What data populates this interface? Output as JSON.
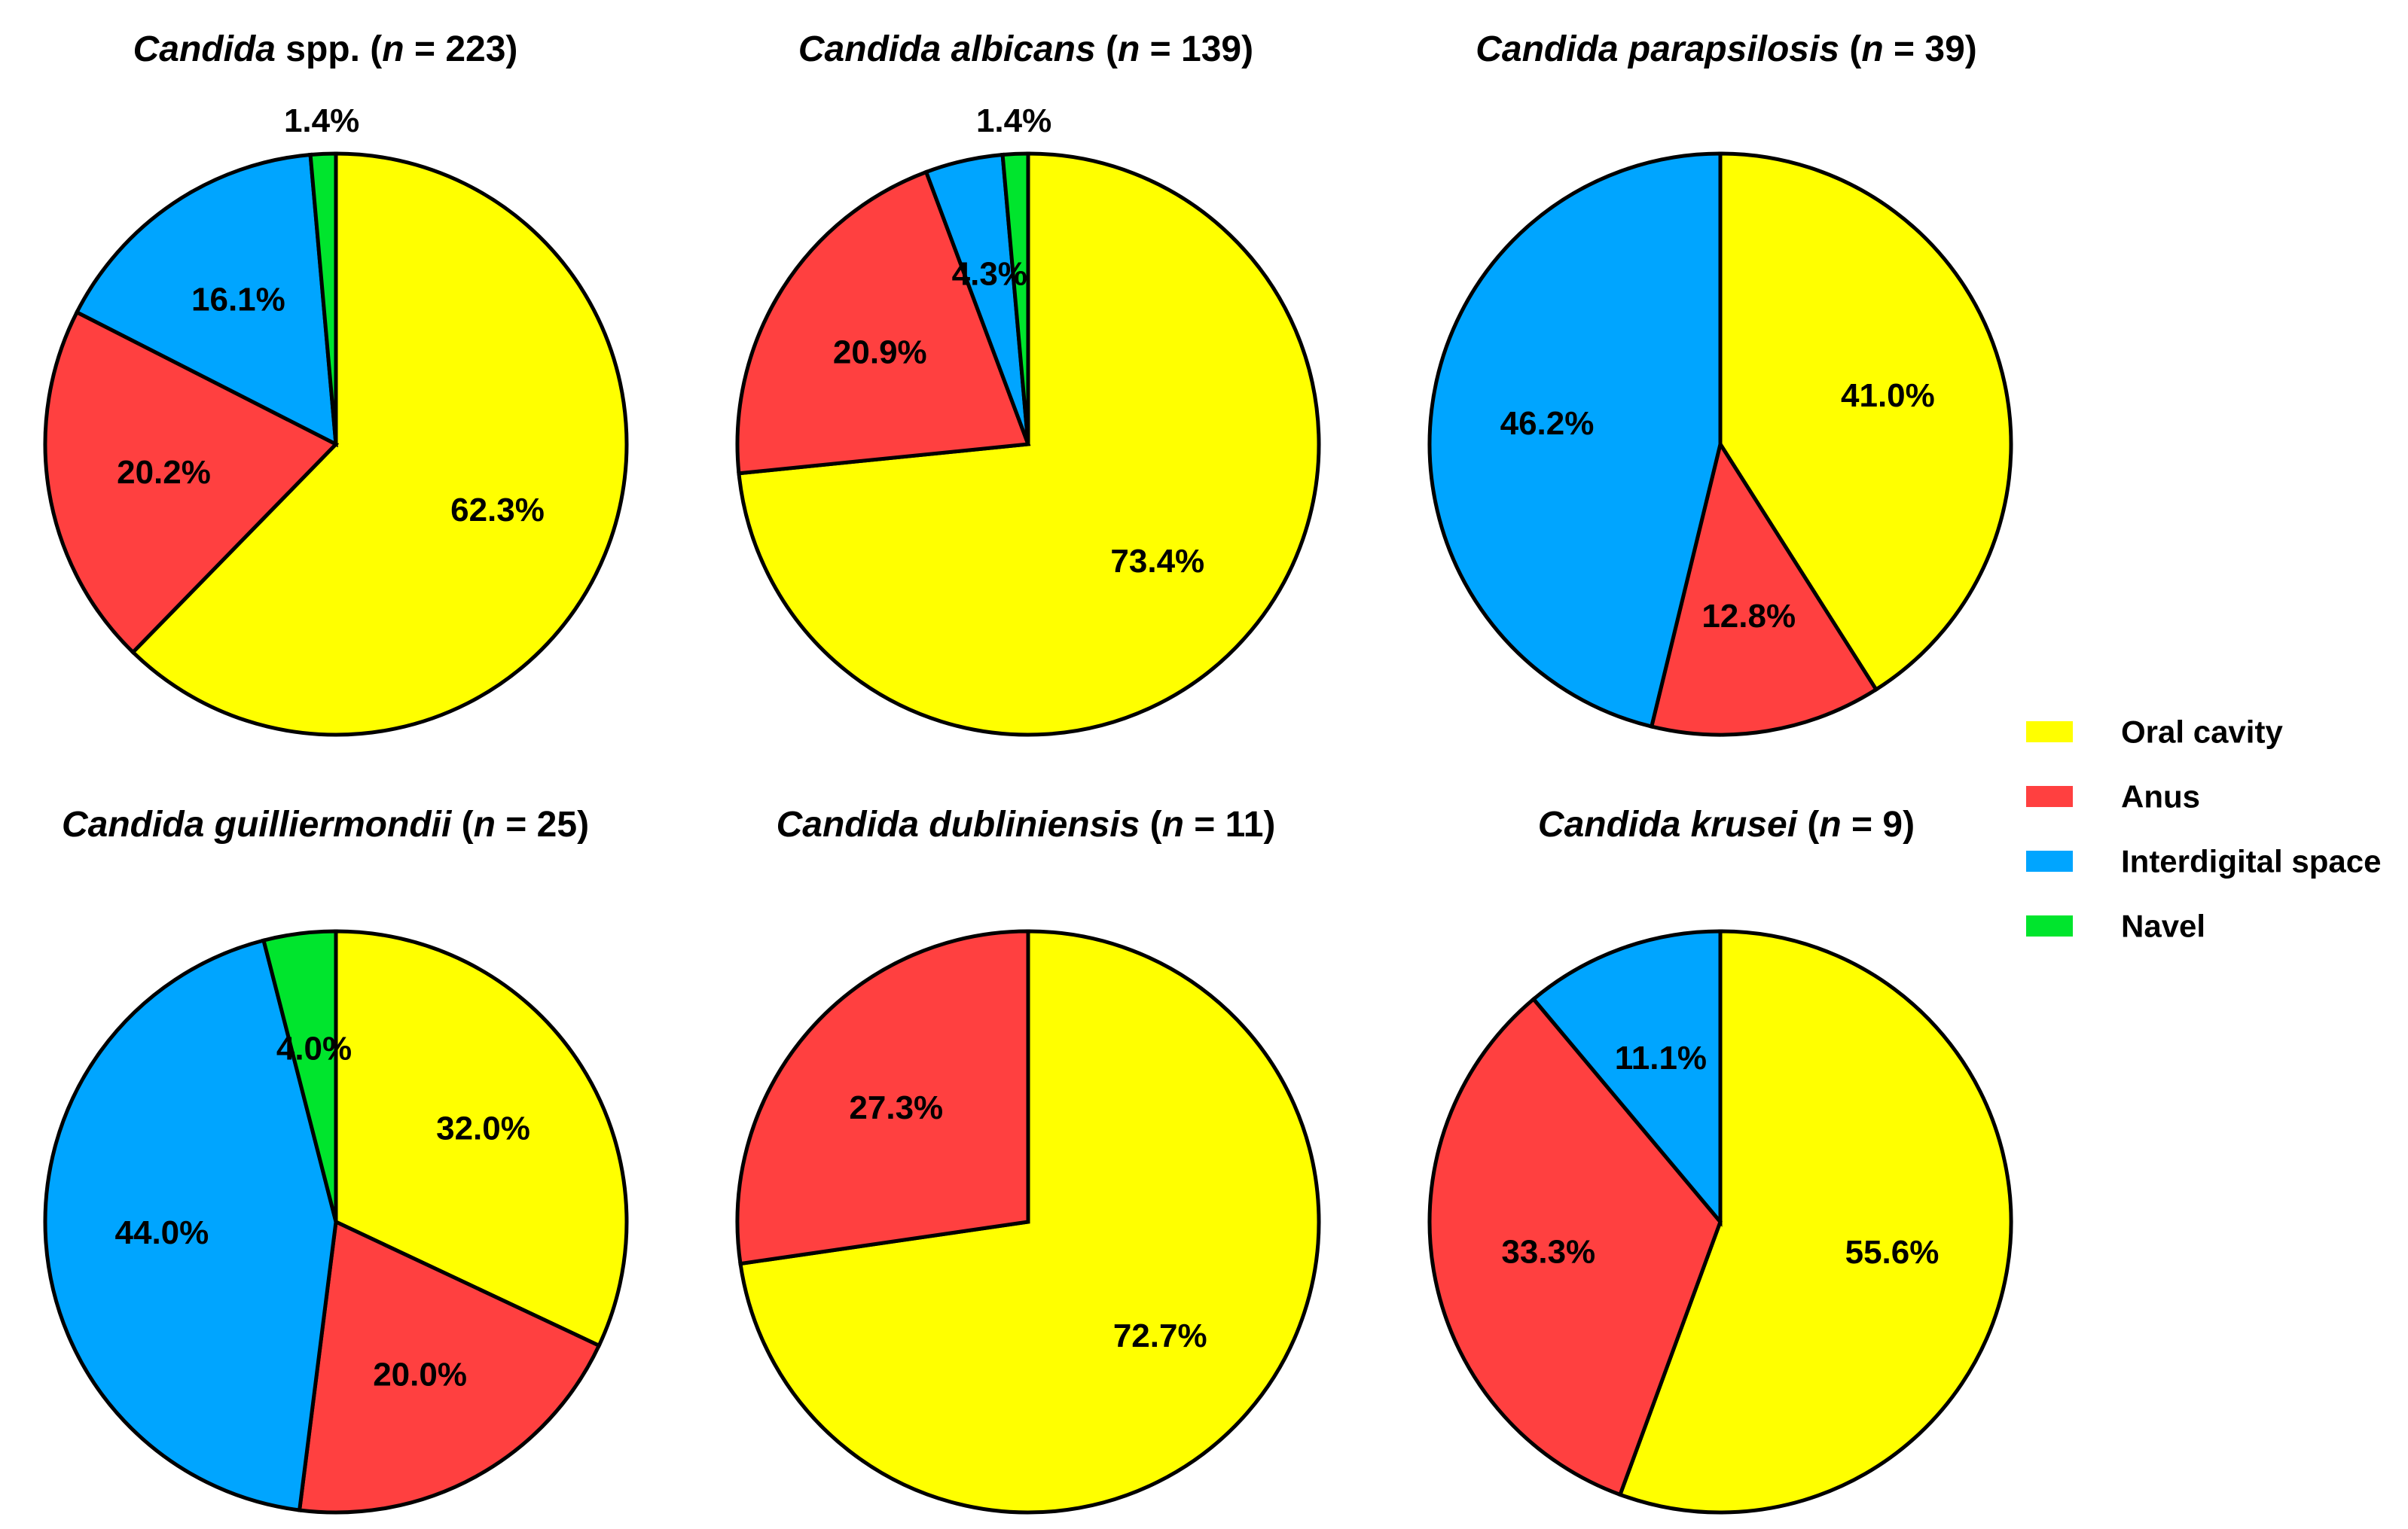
{
  "colors": {
    "Oral cavity": "#ffff00",
    "Anus": "#ff4040",
    "Interdigital space": "#00a5ff",
    "Navel": "#00e52d",
    "outline": "#000000"
  },
  "legend": {
    "items": [
      "Oral cavity",
      "Anus",
      "Interdigital space",
      "Navel"
    ]
  },
  "chart_data": [
    {
      "type": "pie",
      "title_species": "Candida",
      "title_suffix": " spp.",
      "title_n": "223",
      "slices": [
        {
          "category": "Oral cavity",
          "value": 62.3,
          "label": "62.3%"
        },
        {
          "category": "Anus",
          "value": 20.2,
          "label": "20.2%"
        },
        {
          "category": "Interdigital space",
          "value": 16.1,
          "label": "16.1%"
        },
        {
          "category": "Navel",
          "value": 1.4,
          "label": "1.4%"
        }
      ]
    },
    {
      "type": "pie",
      "title_species": "Candida albicans",
      "title_suffix": "",
      "title_n": "139",
      "slices": [
        {
          "category": "Oral cavity",
          "value": 73.4,
          "label": "73.4%"
        },
        {
          "category": "Anus",
          "value": 20.9,
          "label": "20.9%"
        },
        {
          "category": "Interdigital space",
          "value": 4.3,
          "label": "4.3%"
        },
        {
          "category": "Navel",
          "value": 1.4,
          "label": "1.4%"
        }
      ]
    },
    {
      "type": "pie",
      "title_species": "Candida parapsilosis",
      "title_suffix": "",
      "title_n": "39",
      "slices": [
        {
          "category": "Oral cavity",
          "value": 41.0,
          "label": "41.0%"
        },
        {
          "category": "Anus",
          "value": 12.8,
          "label": "12.8%"
        },
        {
          "category": "Interdigital space",
          "value": 46.2,
          "label": "46.2%"
        }
      ]
    },
    {
      "type": "pie",
      "title_species": "Candida guilliermondii",
      "title_suffix": "",
      "title_n": "25",
      "slices": [
        {
          "category": "Oral cavity",
          "value": 32.0,
          "label": "32.0%"
        },
        {
          "category": "Anus",
          "value": 20.0,
          "label": "20.0%"
        },
        {
          "category": "Interdigital space",
          "value": 44.0,
          "label": "44.0%"
        },
        {
          "category": "Navel",
          "value": 4.0,
          "label": "4.0%"
        }
      ]
    },
    {
      "type": "pie",
      "title_species": "Candida dubliniensis",
      "title_suffix": "",
      "title_n": "11",
      "slices": [
        {
          "category": "Oral cavity",
          "value": 72.7,
          "label": "72.7%"
        },
        {
          "category": "Anus",
          "value": 27.3,
          "label": "27.3%"
        }
      ]
    },
    {
      "type": "pie",
      "title_species": "Candida krusei",
      "title_suffix": "",
      "title_n": "9",
      "slices": [
        {
          "category": "Oral cavity",
          "value": 55.6,
          "label": "55.6%"
        },
        {
          "category": "Anus",
          "value": 33.3,
          "label": "33.3%"
        },
        {
          "category": "Interdigital space",
          "value": 11.1,
          "label": "11.1%"
        }
      ]
    }
  ]
}
